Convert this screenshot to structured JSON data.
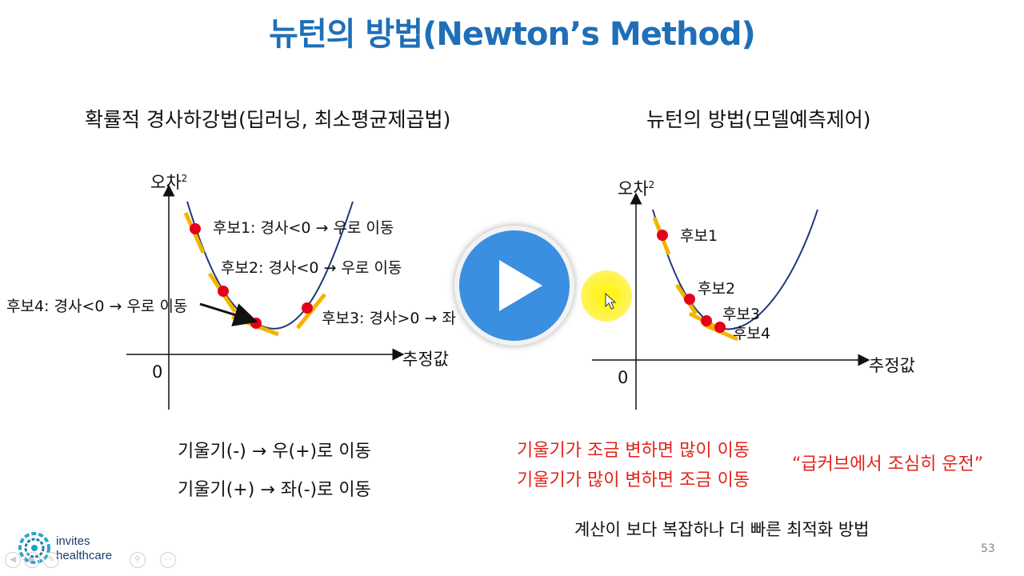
{
  "title": "뉴턴의 방법(Newton’s Method)",
  "left": {
    "subtitle": "확률적 경사하강법(딥러닝, 최소평균제곱법)",
    "y_axis": "오차",
    "y_sup": "2",
    "x_axis": "추정값",
    "origin": "0",
    "candidate1": "후보1: 경사<0 → 우로 이동",
    "candidate2": "후보2: 경사<0 → 우로 이동",
    "candidate3": "후보3: 경사>0 → 좌",
    "candidate4": "후보4: 경사<0 → 우로 이동",
    "rule1": "기울기(-) → 우(+)로 이동",
    "rule2": "기울기(+) → 좌(-)로 이동"
  },
  "right": {
    "subtitle": "뉴턴의 방법(모델예측제어)",
    "y_axis": "오차",
    "y_sup": "2",
    "x_axis": "추정값",
    "origin": "0",
    "candidate1": "후보1",
    "candidate2": "후보2",
    "candidate3": "후보3",
    "candidate4": "후보4",
    "note1": "기울기가 조금 변하면 많이 이동",
    "note2": "기울기가 많이 변하면 조금 이동",
    "quote": "“급커브에서 조심히 운전”",
    "summary": "계산이 보다 복잡하나 더 빠른 최적화 방법"
  },
  "logo": {
    "line1": "invites",
    "line2": "healthcare"
  },
  "page_number": "53",
  "colors": {
    "title": "#1f6fb8",
    "curve": "#1f3a7a",
    "tangent": "#f5b400",
    "point": "#e3001b",
    "note": "#e2231a"
  },
  "icons": [
    "play-icon",
    "prev-icon",
    "next-icon",
    "pen-icon",
    "zoom-icon",
    "more-icon"
  ]
}
